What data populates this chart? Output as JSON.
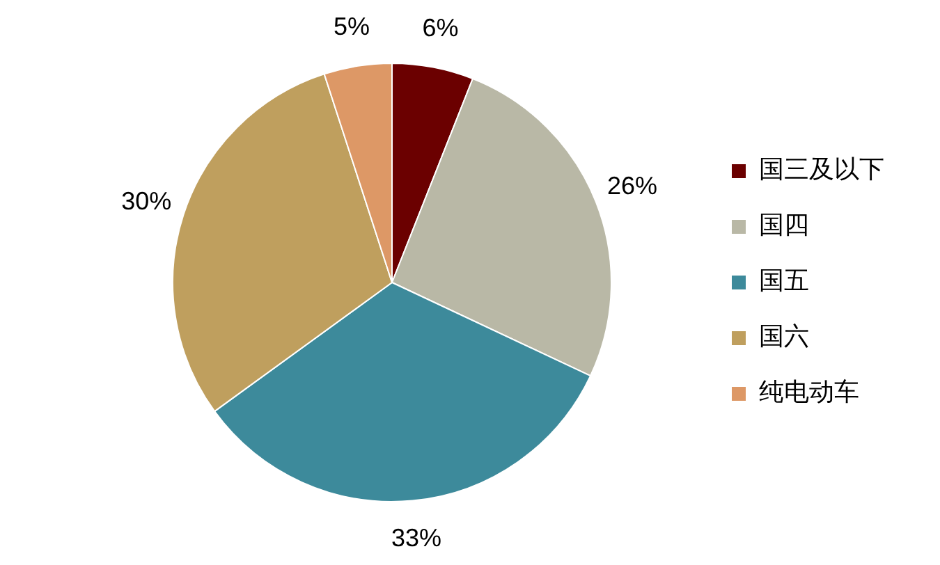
{
  "chart_data": {
    "type": "pie",
    "categories": [
      "国三及以下",
      "国四",
      "国五",
      "国六",
      "纯电动车"
    ],
    "values": [
      6,
      26,
      33,
      30,
      5
    ],
    "colors": [
      "#6b0000",
      "#b9b8a6",
      "#3d8a9b",
      "#bf9f5e",
      "#dd9866"
    ],
    "value_labels": [
      "6%",
      "26%",
      "33%",
      "30%",
      "5%"
    ],
    "legend": "right"
  }
}
